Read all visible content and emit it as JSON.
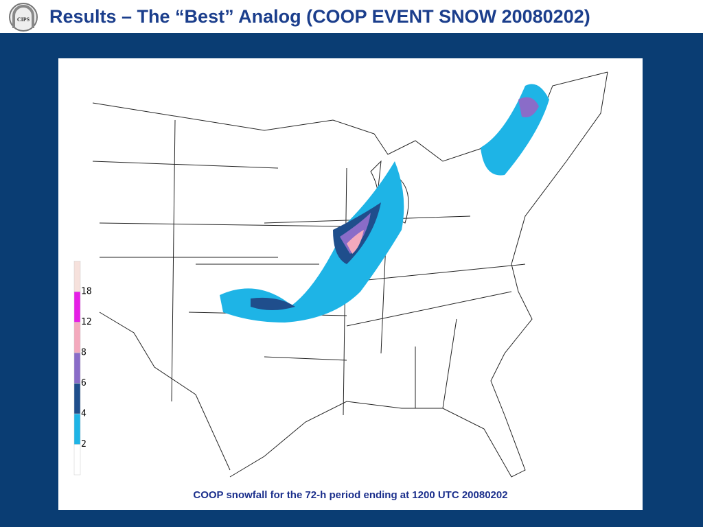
{
  "header": {
    "logo": "CIPS",
    "title": "Results – The “Best” Analog (COOP EVENT SNOW 20080202)"
  },
  "map": {
    "legend": {
      "ticks": [
        2,
        4,
        6,
        8,
        12,
        18
      ],
      "colors": [
        "#ffffff",
        "#1eb4e6",
        "#1f4e8c",
        "#8a6cc8",
        "#f4a9bd",
        "#e61ee6",
        "#f6e1dc"
      ]
    },
    "caption": "COOP snowfall for the 72-h period ending at 1200 UTC 20080202"
  }
}
